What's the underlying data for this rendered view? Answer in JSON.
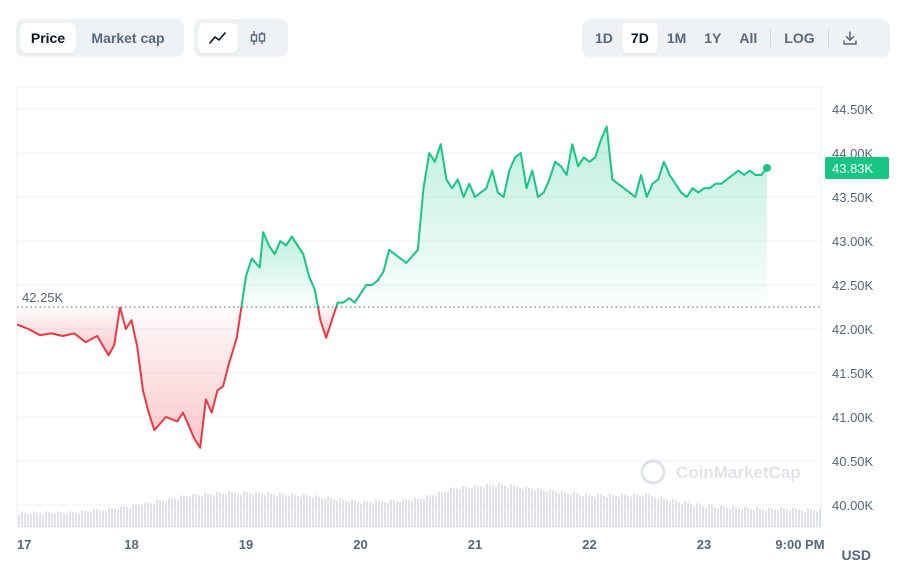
{
  "toolbar": {
    "metric_tabs": [
      {
        "label": "Price",
        "active": true
      },
      {
        "label": "Market cap",
        "active": false
      }
    ],
    "chart_types": [
      {
        "icon": "line-chart-icon",
        "active": true
      },
      {
        "icon": "candlestick-icon",
        "active": false
      }
    ],
    "ranges": [
      {
        "label": "1D",
        "active": false
      },
      {
        "label": "7D",
        "active": true
      },
      {
        "label": "1M",
        "active": false
      },
      {
        "label": "1Y",
        "active": false
      },
      {
        "label": "All",
        "active": false
      }
    ],
    "log_label": "LOG",
    "download_icon": "download-icon"
  },
  "chart_data": {
    "type": "area",
    "x_tick_labels": [
      "17",
      "18",
      "19",
      "20",
      "21",
      "22",
      "23",
      "9:00 PM"
    ],
    "y_tick_labels": [
      "44.50K",
      "44.00K",
      "43.50K",
      "43.00K",
      "42.50K",
      "42.00K",
      "41.50K",
      "41.00K",
      "40.50K",
      "40.00K"
    ],
    "ylim": [
      39.75,
      44.75
    ],
    "y_unit": "USD",
    "reference_price": 42.25,
    "reference_label": "42.25K",
    "current_price": 43.83,
    "current_label": "43.83K",
    "watermark": "CoinMarketCap",
    "colors": {
      "up": "#16c784",
      "down": "#ea3943"
    },
    "price_points": [
      [
        0.0,
        42.05
      ],
      [
        0.1,
        42.0
      ],
      [
        0.2,
        41.93
      ],
      [
        0.3,
        41.95
      ],
      [
        0.4,
        41.92
      ],
      [
        0.5,
        41.95
      ],
      [
        0.6,
        41.85
      ],
      [
        0.7,
        41.92
      ],
      [
        0.8,
        41.7
      ],
      [
        0.85,
        41.82
      ],
      [
        0.9,
        42.25
      ],
      [
        0.95,
        42.0
      ],
      [
        1.0,
        42.1
      ],
      [
        1.05,
        41.8
      ],
      [
        1.1,
        41.3
      ],
      [
        1.15,
        41.05
      ],
      [
        1.2,
        40.85
      ],
      [
        1.3,
        41.0
      ],
      [
        1.4,
        40.95
      ],
      [
        1.45,
        41.05
      ],
      [
        1.5,
        40.9
      ],
      [
        1.55,
        40.75
      ],
      [
        1.6,
        40.65
      ],
      [
        1.65,
        41.2
      ],
      [
        1.7,
        41.05
      ],
      [
        1.75,
        41.3
      ],
      [
        1.8,
        41.35
      ],
      [
        1.85,
        41.6
      ],
      [
        1.92,
        41.9
      ],
      [
        2.0,
        42.6
      ],
      [
        2.05,
        42.8
      ],
      [
        2.12,
        42.7
      ],
      [
        2.15,
        43.1
      ],
      [
        2.2,
        42.95
      ],
      [
        2.25,
        42.85
      ],
      [
        2.3,
        43.0
      ],
      [
        2.35,
        42.95
      ],
      [
        2.4,
        43.05
      ],
      [
        2.45,
        42.95
      ],
      [
        2.5,
        42.85
      ],
      [
        2.55,
        42.6
      ],
      [
        2.6,
        42.45
      ],
      [
        2.65,
        42.1
      ],
      [
        2.7,
        41.9
      ],
      [
        2.75,
        42.1
      ],
      [
        2.8,
        42.3
      ],
      [
        2.85,
        42.3
      ],
      [
        2.9,
        42.35
      ],
      [
        2.95,
        42.3
      ],
      [
        3.0,
        42.4
      ],
      [
        3.05,
        42.5
      ],
      [
        3.1,
        42.5
      ],
      [
        3.15,
        42.55
      ],
      [
        3.2,
        42.65
      ],
      [
        3.25,
        42.9
      ],
      [
        3.3,
        42.85
      ],
      [
        3.35,
        42.8
      ],
      [
        3.4,
        42.75
      ],
      [
        3.5,
        42.9
      ],
      [
        3.55,
        43.6
      ],
      [
        3.6,
        44.0
      ],
      [
        3.65,
        43.9
      ],
      [
        3.7,
        44.1
      ],
      [
        3.75,
        43.7
      ],
      [
        3.8,
        43.6
      ],
      [
        3.85,
        43.7
      ],
      [
        3.9,
        43.5
      ],
      [
        3.95,
        43.65
      ],
      [
        4.0,
        43.5
      ],
      [
        4.05,
        43.55
      ],
      [
        4.1,
        43.6
      ],
      [
        4.15,
        43.8
      ],
      [
        4.2,
        43.55
      ],
      [
        4.25,
        43.5
      ],
      [
        4.3,
        43.8
      ],
      [
        4.35,
        43.95
      ],
      [
        4.4,
        44.0
      ],
      [
        4.45,
        43.6
      ],
      [
        4.5,
        43.8
      ],
      [
        4.55,
        43.5
      ],
      [
        4.6,
        43.55
      ],
      [
        4.65,
        43.7
      ],
      [
        4.7,
        43.9
      ],
      [
        4.75,
        43.85
      ],
      [
        4.8,
        43.75
      ],
      [
        4.85,
        44.1
      ],
      [
        4.9,
        43.85
      ],
      [
        4.95,
        43.95
      ],
      [
        5.0,
        43.9
      ],
      [
        5.05,
        43.95
      ],
      [
        5.1,
        44.15
      ],
      [
        5.15,
        44.3
      ],
      [
        5.2,
        43.7
      ],
      [
        5.25,
        43.65
      ],
      [
        5.3,
        43.6
      ],
      [
        5.35,
        43.55
      ],
      [
        5.4,
        43.5
      ],
      [
        5.45,
        43.75
      ],
      [
        5.5,
        43.5
      ],
      [
        5.55,
        43.65
      ],
      [
        5.6,
        43.7
      ],
      [
        5.65,
        43.9
      ],
      [
        5.7,
        43.75
      ],
      [
        5.75,
        43.65
      ],
      [
        5.8,
        43.55
      ],
      [
        5.85,
        43.5
      ],
      [
        5.9,
        43.6
      ],
      [
        5.95,
        43.55
      ],
      [
        6.0,
        43.6
      ],
      [
        6.05,
        43.6
      ],
      [
        6.1,
        43.65
      ],
      [
        6.15,
        43.65
      ],
      [
        6.2,
        43.7
      ],
      [
        6.25,
        43.75
      ],
      [
        6.3,
        43.8
      ],
      [
        6.35,
        43.75
      ],
      [
        6.4,
        43.8
      ],
      [
        6.45,
        43.75
      ],
      [
        6.5,
        43.75
      ],
      [
        6.55,
        43.83
      ]
    ],
    "volume_profile": [
      [
        0.0,
        0.2
      ],
      [
        0.5,
        0.2
      ],
      [
        1.0,
        0.3
      ],
      [
        1.5,
        0.45
      ],
      [
        2.0,
        0.5
      ],
      [
        2.5,
        0.45
      ],
      [
        3.0,
        0.35
      ],
      [
        3.5,
        0.4
      ],
      [
        3.8,
        0.55
      ],
      [
        4.2,
        0.6
      ],
      [
        4.5,
        0.55
      ],
      [
        5.0,
        0.45
      ],
      [
        5.5,
        0.45
      ],
      [
        6.0,
        0.3
      ],
      [
        6.5,
        0.25
      ],
      [
        6.6,
        0.25
      ]
    ]
  }
}
